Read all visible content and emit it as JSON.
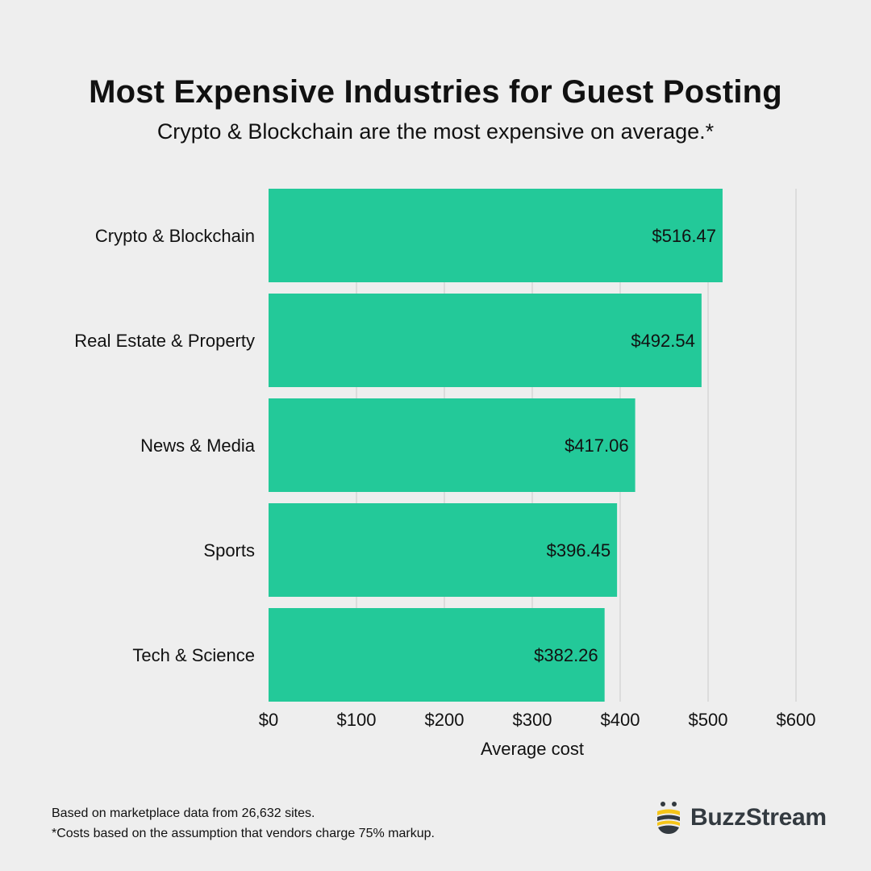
{
  "header": {
    "title": "Most Expensive Industries for Guest Posting",
    "subtitle": "Crypto & Blockchain are the most expensive on average.*"
  },
  "chart_data": {
    "type": "bar",
    "orientation": "horizontal",
    "title": "Most Expensive Industries for Guest Posting",
    "subtitle": "Crypto & Blockchain are the most expensive on average.*",
    "xlabel": "Average cost",
    "ylabel": "",
    "categories": [
      "Crypto & Blockchain",
      "Real Estate & Property",
      "News & Media",
      "Sports",
      "Tech & Science"
    ],
    "values": [
      516.47,
      492.54,
      417.06,
      396.45,
      382.26
    ],
    "value_labels": [
      "$516.47",
      "$492.54",
      "$417.06",
      "$396.45",
      "$382.26"
    ],
    "xlim": [
      0,
      600
    ],
    "xticks": [
      0,
      100,
      200,
      300,
      400,
      500,
      600
    ],
    "xtick_labels": [
      "$0",
      "$100",
      "$200",
      "$300",
      "$400",
      "$500",
      "$600"
    ],
    "grid": true,
    "bar_color": "#23c999"
  },
  "footer": {
    "note1": "Based on marketplace data from 26,632 sites.",
    "note2": "*Costs based on the assumption that vendors charge 75% markup."
  },
  "logo": {
    "name": "BuzzStream",
    "accent_color": "#f5c518",
    "dark_color": "#333a40"
  },
  "colors": {
    "background": "#eeeeee",
    "grid": "#d6d6d6",
    "text": "#111111"
  }
}
